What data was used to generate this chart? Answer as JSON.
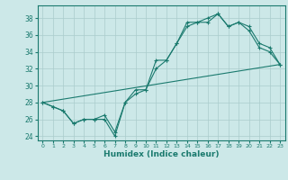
{
  "title": "",
  "xlabel": "Humidex (Indice chaleur)",
  "xlim": [
    -0.5,
    23.5
  ],
  "ylim": [
    23.5,
    39.5
  ],
  "yticks": [
    24,
    26,
    28,
    30,
    32,
    34,
    36,
    38
  ],
  "xticks": [
    0,
    1,
    2,
    3,
    4,
    5,
    6,
    7,
    8,
    9,
    10,
    11,
    12,
    13,
    14,
    15,
    16,
    17,
    18,
    19,
    20,
    21,
    22,
    23
  ],
  "bg_color": "#cce8e8",
  "grid_color": "#aacccc",
  "line_color": "#1a7a6e",
  "line1_x": [
    0,
    1,
    2,
    3,
    4,
    5,
    6,
    7,
    8,
    9,
    10,
    11,
    12,
    13,
    14,
    15,
    16,
    17,
    18,
    19,
    20,
    21,
    22,
    23
  ],
  "line1_y": [
    28,
    27.5,
    27,
    25.5,
    26,
    26,
    26,
    24,
    28,
    29.5,
    29.5,
    33,
    33,
    35,
    37.5,
    37.5,
    37.5,
    38.5,
    37,
    37.5,
    37,
    35,
    34.5,
    32.5
  ],
  "line2_x": [
    0,
    1,
    2,
    3,
    4,
    5,
    6,
    7,
    8,
    9,
    10,
    11,
    12,
    13,
    14,
    15,
    16,
    17,
    18,
    19,
    20,
    21,
    22,
    23
  ],
  "line2_y": [
    28,
    27.5,
    27,
    25.5,
    26,
    26,
    26.5,
    24.5,
    28,
    29,
    29.5,
    32,
    33,
    35,
    37,
    37.5,
    38,
    38.5,
    37,
    37.5,
    36.5,
    34.5,
    34,
    32.5
  ],
  "line3_x": [
    0,
    23
  ],
  "line3_y": [
    28,
    32.5
  ]
}
